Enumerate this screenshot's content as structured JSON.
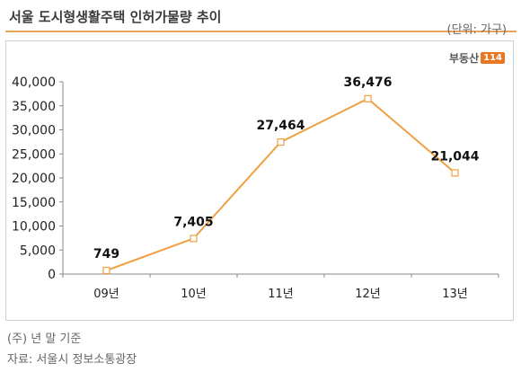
{
  "header": {
    "title": "서울 도시형생활주택 인허가물량 추이",
    "unit": "(단위: 가구)"
  },
  "logo": {
    "text": "부동산",
    "badge": "114",
    "accent": "#e87722"
  },
  "footer": {
    "note": "(주) 년 말 기준",
    "source": "자료: 서울시 정보소통광장"
  },
  "chart_data": {
    "type": "line",
    "categories": [
      "09년",
      "10년",
      "11년",
      "12년",
      "13년"
    ],
    "series": [
      {
        "values": [
          749,
          7405,
          27464,
          36476,
          21044
        ],
        "color": "#f0a040"
      }
    ],
    "data_labels": [
      "749",
      "7,405",
      "27,464",
      "36,476",
      "21,044"
    ],
    "y_ticks": [
      "0",
      "5,000",
      "10,000",
      "15,000",
      "20,000",
      "25,000",
      "30,000",
      "35,000",
      "40,000"
    ],
    "ylim": [
      0,
      40000
    ],
    "y_step": 5000,
    "grid": false,
    "legend": "none"
  }
}
